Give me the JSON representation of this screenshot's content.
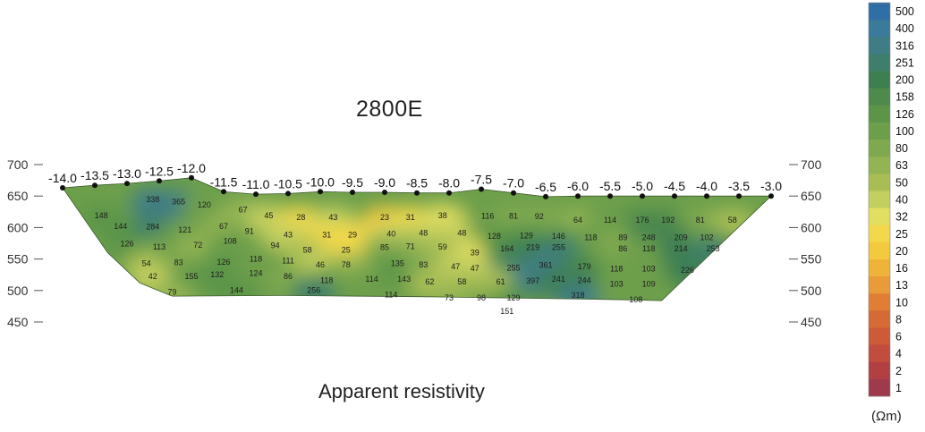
{
  "title": "2800E",
  "caption": "Apparent resistivity",
  "units": "(Ωm)",
  "chart_data": {
    "type": "heatmap",
    "title": "2800E",
    "subtitle": "Apparent resistivity",
    "xlabel": "",
    "ylabel": "",
    "grid": false,
    "legend_placement": "right",
    "stations": [
      "-14.0",
      "-13.5",
      "-13.0",
      "-12.5",
      "-12.0",
      "-11.5",
      "-11.0",
      "-10.5",
      "-10.0",
      "-9.5",
      "-9.0",
      "-8.5",
      "-8.0",
      "-7.5",
      "-7.0",
      "-6.5",
      "-6.0",
      "-5.5",
      "-5.0",
      "-4.5",
      "-4.0",
      "-3.5",
      "-3.0"
    ],
    "y_ticks": [
      700,
      650,
      600,
      550,
      500,
      450
    ],
    "ylim": [
      450,
      700
    ],
    "color_scale": {
      "label": "(Ωm)",
      "levels": [
        500,
        400,
        316,
        251,
        200,
        158,
        126,
        100,
        80,
        63,
        50,
        40,
        32,
        25,
        20,
        16,
        13,
        10,
        8,
        6,
        4,
        2,
        1
      ],
      "colors": [
        "#2f6fa6",
        "#3a7a9a",
        "#3f7d86",
        "#3d7f6c",
        "#3e7f52",
        "#4d8a4c",
        "#5c9548",
        "#6d9f4b",
        "#7fa94f",
        "#93b452",
        "#a8be55",
        "#c3cf5e",
        "#e2de5f",
        "#f2d84a",
        "#f3c93e",
        "#eeb43a",
        "#e89b38",
        "#e07e36",
        "#d66a37",
        "#cd5a39",
        "#c24c3d",
        "#b23f42",
        "#9f3a4c"
      ]
    },
    "values": [
      {
        "x": -13.4,
        "y": 615,
        "v": 148
      },
      {
        "x": -12.6,
        "y": 640,
        "v": 338
      },
      {
        "x": -12.2,
        "y": 637,
        "v": 365
      },
      {
        "x": -11.8,
        "y": 632,
        "v": 120
      },
      {
        "x": -13.1,
        "y": 598,
        "v": 144
      },
      {
        "x": -12.6,
        "y": 597,
        "v": 284
      },
      {
        "x": -12.1,
        "y": 592,
        "v": 121
      },
      {
        "x": -13.0,
        "y": 570,
        "v": 126
      },
      {
        "x": -12.5,
        "y": 565,
        "v": 113
      },
      {
        "x": -11.9,
        "y": 568,
        "v": 72
      },
      {
        "x": -11.5,
        "y": 598,
        "v": 67
      },
      {
        "x": -11.2,
        "y": 624,
        "v": 67
      },
      {
        "x": -11.1,
        "y": 590,
        "v": 91
      },
      {
        "x": -11.4,
        "y": 574,
        "v": 108
      },
      {
        "x": -10.7,
        "y": 567,
        "v": 94
      },
      {
        "x": -10.8,
        "y": 615,
        "v": 45
      },
      {
        "x": -10.3,
        "y": 612,
        "v": 28
      },
      {
        "x": -9.8,
        "y": 612,
        "v": 43
      },
      {
        "x": -9.0,
        "y": 612,
        "v": 23
      },
      {
        "x": -8.6,
        "y": 612,
        "v": 31
      },
      {
        "x": -8.1,
        "y": 615,
        "v": 38
      },
      {
        "x": -10.5,
        "y": 584,
        "v": 43
      },
      {
        "x": -9.9,
        "y": 584,
        "v": 31
      },
      {
        "x": -9.5,
        "y": 584,
        "v": 29
      },
      {
        "x": -8.9,
        "y": 586,
        "v": 40
      },
      {
        "x": -8.4,
        "y": 587,
        "v": 48
      },
      {
        "x": -7.8,
        "y": 587,
        "v": 48
      },
      {
        "x": -7.4,
        "y": 614,
        "v": 116
      },
      {
        "x": -7.0,
        "y": 614,
        "v": 81
      },
      {
        "x": -6.6,
        "y": 613,
        "v": 92
      },
      {
        "x": -6.0,
        "y": 608,
        "v": 64
      },
      {
        "x": -5.5,
        "y": 608,
        "v": 114
      },
      {
        "x": -5.0,
        "y": 608,
        "v": 176
      },
      {
        "x": -4.6,
        "y": 608,
        "v": 192
      },
      {
        "x": -4.1,
        "y": 608,
        "v": 81
      },
      {
        "x": -3.6,
        "y": 608,
        "v": 58
      },
      {
        "x": -7.3,
        "y": 582,
        "v": 128
      },
      {
        "x": -6.8,
        "y": 583,
        "v": 129
      },
      {
        "x": -6.3,
        "y": 582,
        "v": 146
      },
      {
        "x": -5.8,
        "y": 580,
        "v": 118
      },
      {
        "x": -5.3,
        "y": 580,
        "v": 89
      },
      {
        "x": -4.9,
        "y": 580,
        "v": 248
      },
      {
        "x": -4.4,
        "y": 580,
        "v": 209
      },
      {
        "x": -4.0,
        "y": 580,
        "v": 102
      },
      {
        "x": -12.7,
        "y": 539,
        "v": 54
      },
      {
        "x": -12.2,
        "y": 540,
        "v": 83
      },
      {
        "x": -11.5,
        "y": 541,
        "v": 126
      },
      {
        "x": -11.0,
        "y": 546,
        "v": 118
      },
      {
        "x": -10.5,
        "y": 543,
        "v": 111
      },
      {
        "x": -10.2,
        "y": 560,
        "v": 58
      },
      {
        "x": -9.6,
        "y": 560,
        "v": 25
      },
      {
        "x": -9.0,
        "y": 564,
        "v": 85
      },
      {
        "x": -8.6,
        "y": 566,
        "v": 71
      },
      {
        "x": -8.1,
        "y": 565,
        "v": 59
      },
      {
        "x": -7.6,
        "y": 556,
        "v": 39
      },
      {
        "x": -10.0,
        "y": 537,
        "v": 46
      },
      {
        "x": -9.6,
        "y": 537,
        "v": 78
      },
      {
        "x": -8.8,
        "y": 539,
        "v": 135
      },
      {
        "x": -8.4,
        "y": 537,
        "v": 83
      },
      {
        "x": -7.9,
        "y": 534,
        "v": 47
      },
      {
        "x": -7.6,
        "y": 531,
        "v": 47
      },
      {
        "x": -7.1,
        "y": 562,
        "v": 164
      },
      {
        "x": -6.7,
        "y": 564,
        "v": 219
      },
      {
        "x": -6.3,
        "y": 564,
        "v": 255
      },
      {
        "x": -5.3,
        "y": 562,
        "v": 86
      },
      {
        "x": -4.9,
        "y": 562,
        "v": 118
      },
      {
        "x": -4.4,
        "y": 562,
        "v": 214
      },
      {
        "x": -3.9,
        "y": 562,
        "v": 253
      },
      {
        "x": -7.0,
        "y": 532,
        "v": 255
      },
      {
        "x": -6.5,
        "y": 536,
        "v": 361
      },
      {
        "x": -5.9,
        "y": 534,
        "v": 179
      },
      {
        "x": -5.4,
        "y": 530,
        "v": 118
      },
      {
        "x": -4.9,
        "y": 530,
        "v": 103
      },
      {
        "x": -4.3,
        "y": 528,
        "v": 226
      },
      {
        "x": -12.6,
        "y": 518,
        "v": 42
      },
      {
        "x": -12.0,
        "y": 518,
        "v": 155
      },
      {
        "x": -11.6,
        "y": 521,
        "v": 132
      },
      {
        "x": -11.0,
        "y": 523,
        "v": 124
      },
      {
        "x": -10.5,
        "y": 518,
        "v": 86
      },
      {
        "x": -9.9,
        "y": 512,
        "v": 118
      },
      {
        "x": -9.2,
        "y": 514,
        "v": 114
      },
      {
        "x": -8.7,
        "y": 514,
        "v": 143
      },
      {
        "x": -8.3,
        "y": 510,
        "v": 62
      },
      {
        "x": -7.8,
        "y": 510,
        "v": 58
      },
      {
        "x": -7.2,
        "y": 510,
        "v": 61
      },
      {
        "x": -6.7,
        "y": 511,
        "v": 397
      },
      {
        "x": -6.3,
        "y": 514,
        "v": 241
      },
      {
        "x": -5.9,
        "y": 512,
        "v": 244
      },
      {
        "x": -5.4,
        "y": 506,
        "v": 103
      },
      {
        "x": -4.9,
        "y": 506,
        "v": 109
      },
      {
        "x": -12.3,
        "y": 493,
        "v": 79
      },
      {
        "x": -11.3,
        "y": 496,
        "v": 144
      },
      {
        "x": -10.1,
        "y": 496,
        "v": 256
      },
      {
        "x": -8.9,
        "y": 489,
        "v": 114
      },
      {
        "x": -8.0,
        "y": 484,
        "v": 73
      },
      {
        "x": -7.5,
        "y": 484,
        "v": 98
      },
      {
        "x": -7.0,
        "y": 484,
        "v": 129
      },
      {
        "x": -6.0,
        "y": 488,
        "v": 318
      },
      {
        "x": -5.1,
        "y": 481,
        "v": 108
      },
      {
        "x": -7.1,
        "y": 463,
        "v": 151
      }
    ]
  }
}
